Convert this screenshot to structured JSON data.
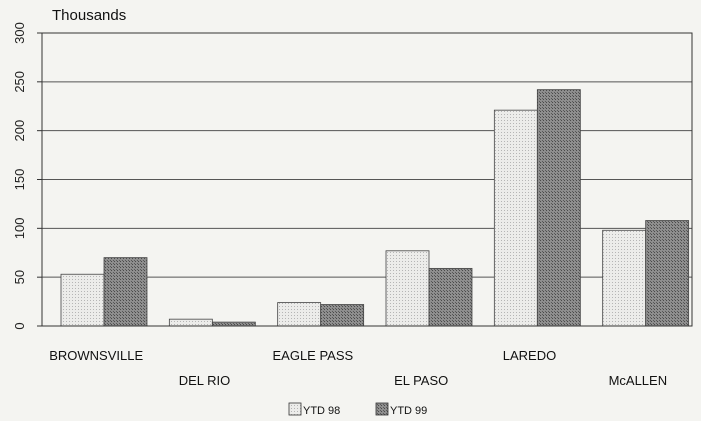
{
  "chart_data": {
    "type": "bar",
    "title": "",
    "ylabel": "Thousands",
    "xlabel": "",
    "categories": [
      "BROWNSVILLE",
      "DEL RIO",
      "EAGLE PASS",
      "EL PASO",
      "LAREDO",
      "McALLEN"
    ],
    "series": [
      {
        "name": "YTD 98",
        "values": [
          53,
          7,
          24,
          77,
          221,
          98
        ],
        "color": "#dedede"
      },
      {
        "name": "YTD 99",
        "values": [
          70,
          4,
          22,
          59,
          242,
          108
        ],
        "color": "#8c8c8c"
      }
    ],
    "ylim": [
      0,
      300
    ],
    "yticks": [
      0,
      50,
      100,
      150,
      200,
      250,
      300
    ],
    "grid": true,
    "legend": "bottom-center"
  }
}
